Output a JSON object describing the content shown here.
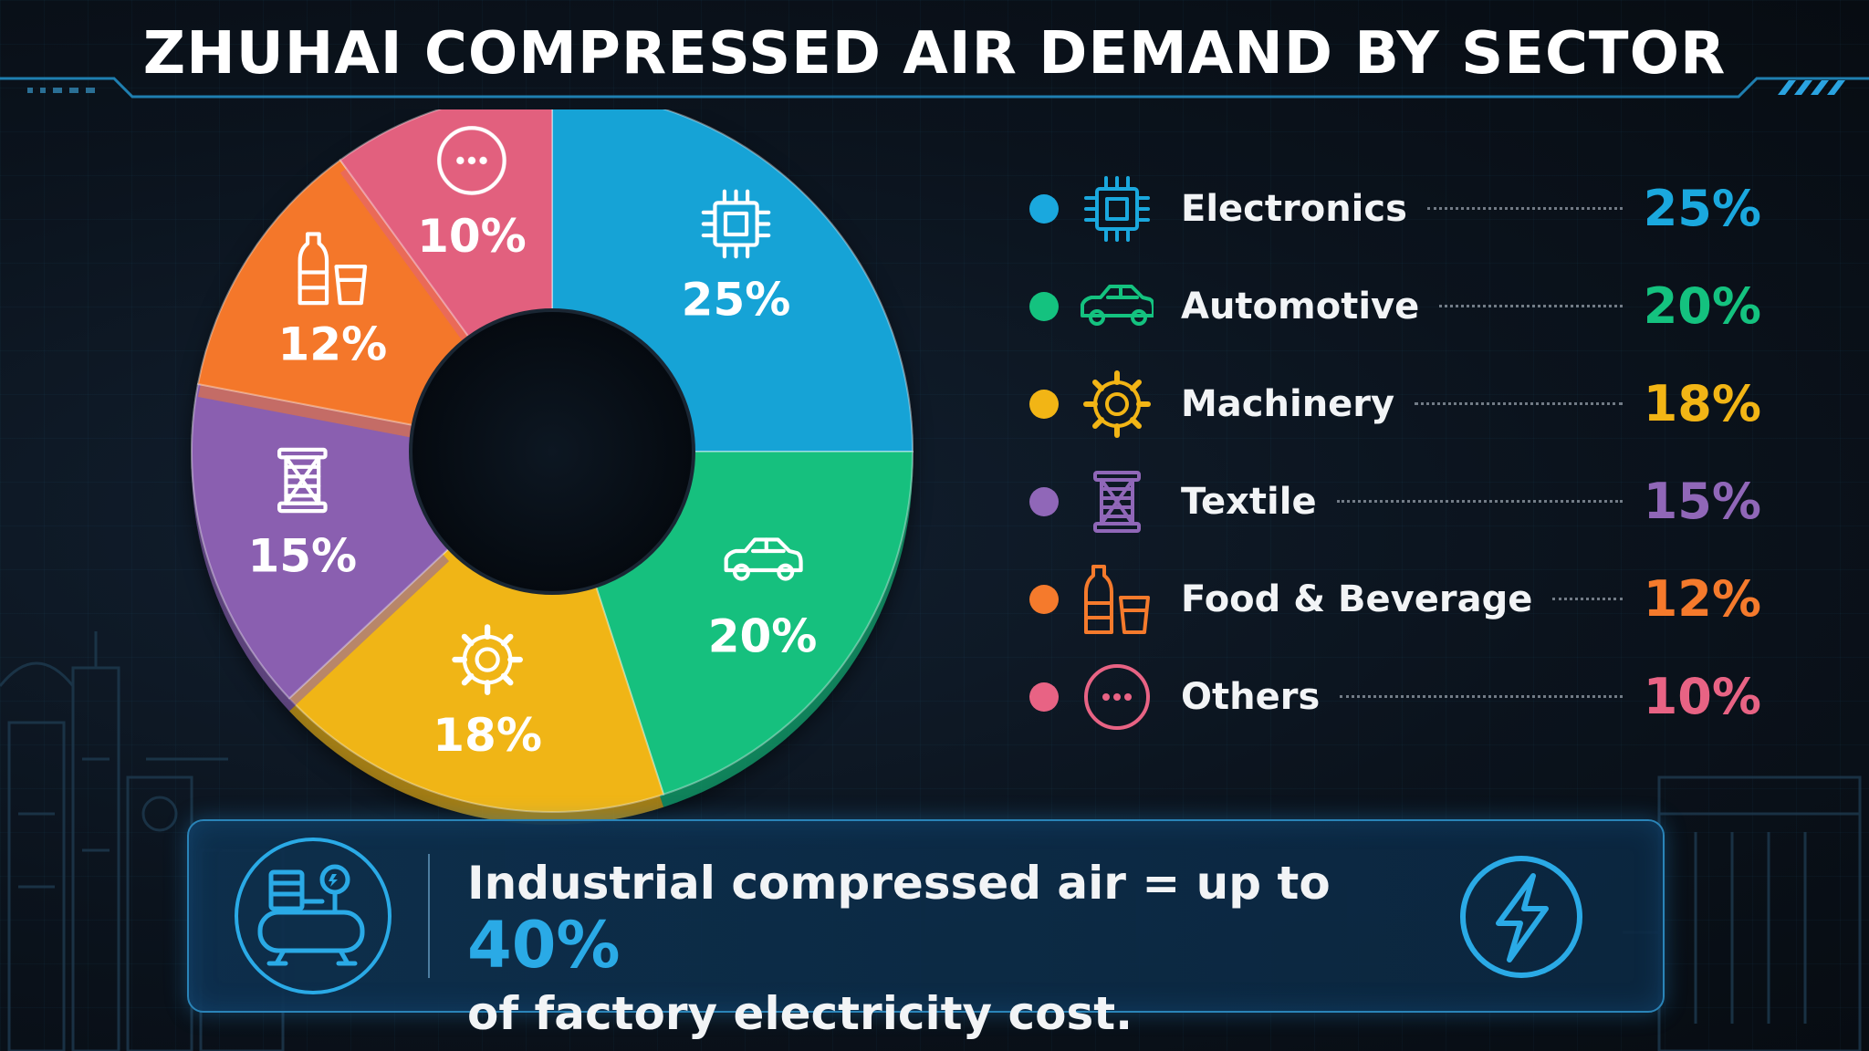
{
  "title": "ZHUHAI COMPRESSED AIR DEMAND BY SECTOR",
  "chart_data": {
    "type": "pie",
    "title": "ZHUHAI COMPRESSED AIR DEMAND BY SECTOR",
    "categories": [
      "Electronics",
      "Automotive",
      "Machinery",
      "Textile",
      "Food & Beverage",
      "Others"
    ],
    "values": [
      25,
      20,
      18,
      15,
      12,
      10
    ],
    "labels": [
      "25%",
      "20%",
      "18%",
      "15%",
      "12%",
      "10%"
    ],
    "colors": [
      "#17a3d6",
      "#12c07e",
      "#f0b513",
      "#8a5fb0",
      "#f4772a",
      "#e2607e"
    ],
    "icons": [
      "chip-icon",
      "car-icon",
      "gear-icon",
      "spool-icon",
      "bottle-cup-icon",
      "ellipsis-icon"
    ],
    "donut": true,
    "legend_position": "right"
  },
  "legend": [
    {
      "label": "Electronics",
      "value": "25%",
      "color": "#1aa8de",
      "icon": "chip-icon"
    },
    {
      "label": "Automotive",
      "value": "20%",
      "color": "#14c27f",
      "icon": "car-icon"
    },
    {
      "label": "Machinery",
      "value": "18%",
      "color": "#f2b515",
      "icon": "gear-icon"
    },
    {
      "label": "Textile",
      "value": "15%",
      "color": "#9067b8",
      "icon": "spool-icon"
    },
    {
      "label": "Food & Beverage",
      "value": "12%",
      "color": "#f57a2c",
      "icon": "bottle-cup-icon"
    },
    {
      "label": "Others",
      "value": "10%",
      "color": "#e86384",
      "icon": "ellipsis-icon"
    }
  ],
  "callout": {
    "line1_prefix": "Industrial compressed air = up to ",
    "highlight": "40%",
    "line2": "of factory electricity cost.",
    "highlight_color": "#2aaae6",
    "icons": [
      "air-compressor-icon",
      "lightning-bolt-icon"
    ]
  }
}
